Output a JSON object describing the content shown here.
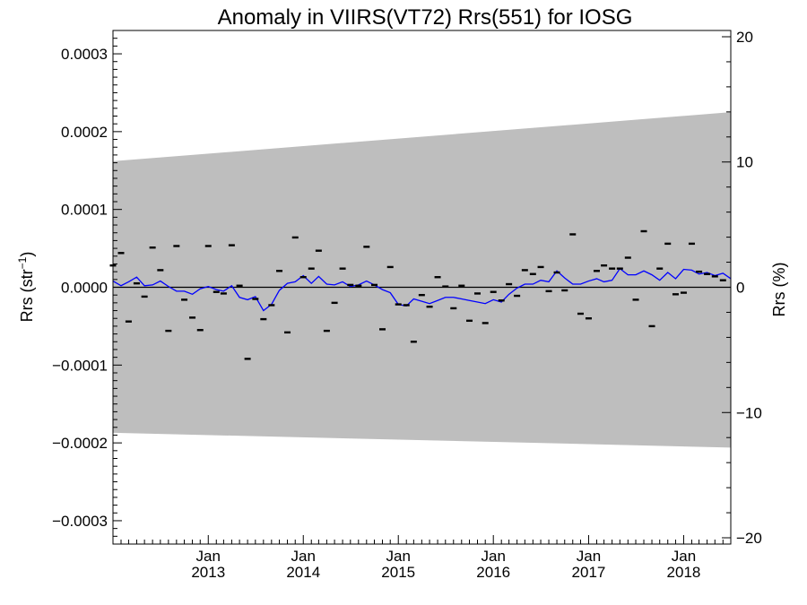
{
  "chart_data": {
    "type": "scatter",
    "title": "Anomaly in VIIRS(VT72) Rrs(551) for IOSG",
    "ylabel": "Rrs (str",
    "ylabel_sup": "−1",
    "ylabel_close": ")",
    "y2label": "Rrs (%)",
    "xlim": [
      "2012-01-01",
      "2018-07-01"
    ],
    "ylim": [
      -0.00033,
      0.00033
    ],
    "y2lim": [
      -20.5,
      20.5
    ],
    "yticks": [
      {
        "value": 0.0003,
        "label": "0.0003"
      },
      {
        "value": 0.0002,
        "label": "0.0002"
      },
      {
        "value": 0.0001,
        "label": "0.0001"
      },
      {
        "value": 0.0,
        "label": "0.0000"
      },
      {
        "value": -0.0001,
        "label": "−0.0001"
      },
      {
        "value": -0.0002,
        "label": "−0.0002"
      },
      {
        "value": -0.0003,
        "label": "−0.0003"
      }
    ],
    "y2ticks": [
      {
        "value": 20,
        "label": "20"
      },
      {
        "value": 10,
        "label": "10"
      },
      {
        "value": 0,
        "label": "0"
      },
      {
        "value": -10,
        "label": "−10"
      },
      {
        "value": -20,
        "label": "−20"
      }
    ],
    "xticks": [
      {
        "date": "2013-01-01",
        "month": "Jan",
        "year": "2013"
      },
      {
        "date": "2014-01-01",
        "month": "Jan",
        "year": "2014"
      },
      {
        "date": "2015-01-01",
        "month": "Jan",
        "year": "2015"
      },
      {
        "date": "2016-01-01",
        "month": "Jan",
        "year": "2016"
      },
      {
        "date": "2017-01-01",
        "month": "Jan",
        "year": "2017"
      },
      {
        "date": "2018-01-01",
        "month": "Jan",
        "year": "2018"
      }
    ],
    "band": {
      "color": "#bebebe",
      "upper": [
        {
          "date": "2012-01-01",
          "value": 0.000162
        },
        {
          "date": "2018-07-01",
          "value": 0.000225
        }
      ],
      "lower": [
        {
          "date": "2012-01-01",
          "value": -0.000187
        },
        {
          "date": "2018-07-01",
          "value": -0.000206
        }
      ]
    },
    "zero_line": true,
    "line_color": "#0000ff",
    "marker_color": "#000000",
    "points": [
      {
        "date": "2012-01-01",
        "value": 2.8e-05
      },
      {
        "date": "2012-02-01",
        "value": 4.4e-05
      },
      {
        "date": "2012-03-01",
        "value": -4.4e-05
      },
      {
        "date": "2012-04-01",
        "value": 5e-06
      },
      {
        "date": "2012-05-01",
        "value": -1.2e-05
      },
      {
        "date": "2012-06-01",
        "value": 5.1e-05
      },
      {
        "date": "2012-07-01",
        "value": 2.2e-05
      },
      {
        "date": "2012-08-01",
        "value": -5.6e-05
      },
      {
        "date": "2012-09-01",
        "value": 5.3e-05
      },
      {
        "date": "2012-10-01",
        "value": -1.6e-05
      },
      {
        "date": "2012-11-01",
        "value": -3.9e-05
      },
      {
        "date": "2012-12-01",
        "value": -5.5e-05
      },
      {
        "date": "2013-01-01",
        "value": 5.3e-05
      },
      {
        "date": "2013-02-01",
        "value": -6e-06
      },
      {
        "date": "2013-03-01",
        "value": -8e-06
      },
      {
        "date": "2013-04-01",
        "value": 5.4e-05
      },
      {
        "date": "2013-05-01",
        "value": 2e-06
      },
      {
        "date": "2013-06-01",
        "value": -9.2e-05
      },
      {
        "date": "2013-07-01",
        "value": -1.5e-05
      },
      {
        "date": "2013-08-01",
        "value": -4.1e-05
      },
      {
        "date": "2013-09-01",
        "value": -2.3e-05
      },
      {
        "date": "2013-10-01",
        "value": 2.1e-05
      },
      {
        "date": "2013-11-01",
        "value": -5.8e-05
      },
      {
        "date": "2013-12-01",
        "value": 6.4e-05
      },
      {
        "date": "2014-01-01",
        "value": 1.3e-05
      },
      {
        "date": "2014-02-01",
        "value": 2.4e-05
      },
      {
        "date": "2014-03-01",
        "value": 4.7e-05
      },
      {
        "date": "2014-04-01",
        "value": -5.6e-05
      },
      {
        "date": "2014-05-01",
        "value": -2e-05
      },
      {
        "date": "2014-06-01",
        "value": 2.4e-05
      },
      {
        "date": "2014-07-01",
        "value": 3e-06
      },
      {
        "date": "2014-08-01",
        "value": 2e-06
      },
      {
        "date": "2014-09-01",
        "value": 5.2e-05
      },
      {
        "date": "2014-10-01",
        "value": 3e-06
      },
      {
        "date": "2014-11-01",
        "value": -5.4e-05
      },
      {
        "date": "2014-12-01",
        "value": 2.6e-05
      },
      {
        "date": "2015-01-01",
        "value": -2.2e-05
      },
      {
        "date": "2015-02-01",
        "value": -2.3e-05
      },
      {
        "date": "2015-03-01",
        "value": -7e-05
      },
      {
        "date": "2015-04-01",
        "value": -1e-05
      },
      {
        "date": "2015-05-01",
        "value": -2.5e-05
      },
      {
        "date": "2015-06-01",
        "value": 1.3e-05
      },
      {
        "date": "2015-07-01",
        "value": 1e-06
      },
      {
        "date": "2015-08-01",
        "value": -2.7e-05
      },
      {
        "date": "2015-09-01",
        "value": 2e-06
      },
      {
        "date": "2015-10-01",
        "value": -4.3e-05
      },
      {
        "date": "2015-11-01",
        "value": -8e-06
      },
      {
        "date": "2015-12-01",
        "value": -4.6e-05
      },
      {
        "date": "2016-01-01",
        "value": -6e-06
      },
      {
        "date": "2016-02-01",
        "value": -1.7e-05
      },
      {
        "date": "2016-03-01",
        "value": 4e-06
      },
      {
        "date": "2016-04-01",
        "value": -1.1e-05
      },
      {
        "date": "2016-05-01",
        "value": 2.2e-05
      },
      {
        "date": "2016-06-01",
        "value": 1.7e-05
      },
      {
        "date": "2016-07-01",
        "value": 2.6e-05
      },
      {
        "date": "2016-08-01",
        "value": -5e-06
      },
      {
        "date": "2016-09-01",
        "value": 1.9e-05
      },
      {
        "date": "2016-10-01",
        "value": -4e-06
      },
      {
        "date": "2016-11-01",
        "value": 6.8e-05
      },
      {
        "date": "2016-12-01",
        "value": -3.4e-05
      },
      {
        "date": "2017-01-01",
        "value": -4e-05
      },
      {
        "date": "2017-02-01",
        "value": 2.1e-05
      },
      {
        "date": "2017-03-01",
        "value": 2.8e-05
      },
      {
        "date": "2017-04-01",
        "value": 2.4e-05
      },
      {
        "date": "2017-05-01",
        "value": 2.4e-05
      },
      {
        "date": "2017-06-01",
        "value": 3.8e-05
      },
      {
        "date": "2017-07-01",
        "value": -1.6e-05
      },
      {
        "date": "2017-08-01",
        "value": 7.2e-05
      },
      {
        "date": "2017-09-01",
        "value": -5e-05
      },
      {
        "date": "2017-10-01",
        "value": 2.4e-05
      },
      {
        "date": "2017-11-01",
        "value": 5.6e-05
      },
      {
        "date": "2017-12-01",
        "value": -9e-06
      },
      {
        "date": "2018-01-01",
        "value": -7e-06
      },
      {
        "date": "2018-02-01",
        "value": 5.6e-05
      },
      {
        "date": "2018-03-01",
        "value": 2e-05
      },
      {
        "date": "2018-04-01",
        "value": 1.7e-05
      },
      {
        "date": "2018-05-01",
        "value": 1.4e-05
      },
      {
        "date": "2018-06-01",
        "value": 9e-06
      }
    ],
    "smooth_line": [
      {
        "date": "2012-01-01",
        "value": 8e-06
      },
      {
        "date": "2012-02-01",
        "value": 2e-06
      },
      {
        "date": "2012-03-01",
        "value": 7e-06
      },
      {
        "date": "2012-04-01",
        "value": 1.3e-05
      },
      {
        "date": "2012-05-01",
        "value": 2e-06
      },
      {
        "date": "2012-06-01",
        "value": 3e-06
      },
      {
        "date": "2012-07-01",
        "value": 8e-06
      },
      {
        "date": "2012-08-01",
        "value": 1e-06
      },
      {
        "date": "2012-09-01",
        "value": -5e-06
      },
      {
        "date": "2012-10-01",
        "value": -5e-06
      },
      {
        "date": "2012-11-01",
        "value": -9e-06
      },
      {
        "date": "2012-12-01",
        "value": -2e-06
      },
      {
        "date": "2013-01-01",
        "value": 1e-06
      },
      {
        "date": "2013-02-01",
        "value": -3e-06
      },
      {
        "date": "2013-03-01",
        "value": -5e-06
      },
      {
        "date": "2013-04-01",
        "value": 2e-06
      },
      {
        "date": "2013-05-01",
        "value": -1.3e-05
      },
      {
        "date": "2013-06-01",
        "value": -1.6e-05
      },
      {
        "date": "2013-07-01",
        "value": -1.2e-05
      },
      {
        "date": "2013-08-01",
        "value": -3e-05
      },
      {
        "date": "2013-09-01",
        "value": -2.2e-05
      },
      {
        "date": "2013-10-01",
        "value": -4e-06
      },
      {
        "date": "2013-11-01",
        "value": 5e-06
      },
      {
        "date": "2013-12-01",
        "value": 7e-06
      },
      {
        "date": "2014-01-01",
        "value": 1.5e-05
      },
      {
        "date": "2014-02-01",
        "value": 5e-06
      },
      {
        "date": "2014-03-01",
        "value": 1.4e-05
      },
      {
        "date": "2014-04-01",
        "value": 4e-06
      },
      {
        "date": "2014-05-01",
        "value": 3e-06
      },
      {
        "date": "2014-06-01",
        "value": 7e-06
      },
      {
        "date": "2014-07-01",
        "value": 1e-06
      },
      {
        "date": "2014-08-01",
        "value": 3e-06
      },
      {
        "date": "2014-09-01",
        "value": 8e-06
      },
      {
        "date": "2014-10-01",
        "value": 3e-06
      },
      {
        "date": "2014-11-01",
        "value": -3e-06
      },
      {
        "date": "2014-12-01",
        "value": -7e-06
      },
      {
        "date": "2015-01-01",
        "value": -2.2e-05
      },
      {
        "date": "2015-02-01",
        "value": -2.4e-05
      },
      {
        "date": "2015-03-01",
        "value": -1.5e-05
      },
      {
        "date": "2015-04-01",
        "value": -1.8e-05
      },
      {
        "date": "2015-05-01",
        "value": -2.1e-05
      },
      {
        "date": "2015-06-01",
        "value": -1.7e-05
      },
      {
        "date": "2015-07-01",
        "value": -1.3e-05
      },
      {
        "date": "2015-08-01",
        "value": -1.3e-05
      },
      {
        "date": "2015-09-01",
        "value": -1.5e-05
      },
      {
        "date": "2015-10-01",
        "value": -1.7e-05
      },
      {
        "date": "2015-11-01",
        "value": -1.9e-05
      },
      {
        "date": "2015-12-01",
        "value": -2.1e-05
      },
      {
        "date": "2016-01-01",
        "value": -1.6e-05
      },
      {
        "date": "2016-02-01",
        "value": -1.9e-05
      },
      {
        "date": "2016-03-01",
        "value": -9e-06
      },
      {
        "date": "2016-04-01",
        "value": -1e-06
      },
      {
        "date": "2016-05-01",
        "value": 4e-06
      },
      {
        "date": "2016-06-01",
        "value": 4e-06
      },
      {
        "date": "2016-07-01",
        "value": 9e-06
      },
      {
        "date": "2016-08-01",
        "value": 7e-06
      },
      {
        "date": "2016-09-01",
        "value": 2.1e-05
      },
      {
        "date": "2016-10-01",
        "value": 1.2e-05
      },
      {
        "date": "2016-11-01",
        "value": 4e-06
      },
      {
        "date": "2016-12-01",
        "value": 4e-06
      },
      {
        "date": "2017-01-01",
        "value": 8e-06
      },
      {
        "date": "2017-02-01",
        "value": 1.1e-05
      },
      {
        "date": "2017-03-01",
        "value": 7e-06
      },
      {
        "date": "2017-04-01",
        "value": 9e-06
      },
      {
        "date": "2017-05-01",
        "value": 2.4e-05
      },
      {
        "date": "2017-06-01",
        "value": 1.6e-05
      },
      {
        "date": "2017-07-01",
        "value": 1.6e-05
      },
      {
        "date": "2017-08-01",
        "value": 2.1e-05
      },
      {
        "date": "2017-09-01",
        "value": 1.6e-05
      },
      {
        "date": "2017-10-01",
        "value": 9e-06
      },
      {
        "date": "2017-11-01",
        "value": 1.9e-05
      },
      {
        "date": "2017-12-01",
        "value": 1.1e-05
      },
      {
        "date": "2018-01-01",
        "value": 2.3e-05
      },
      {
        "date": "2018-02-01",
        "value": 2.2e-05
      },
      {
        "date": "2018-03-01",
        "value": 1.7e-05
      },
      {
        "date": "2018-04-01",
        "value": 1.9e-05
      },
      {
        "date": "2018-05-01",
        "value": 1.5e-05
      },
      {
        "date": "2018-06-01",
        "value": 1.8e-05
      },
      {
        "date": "2018-07-01",
        "value": 1.1e-05
      }
    ]
  }
}
